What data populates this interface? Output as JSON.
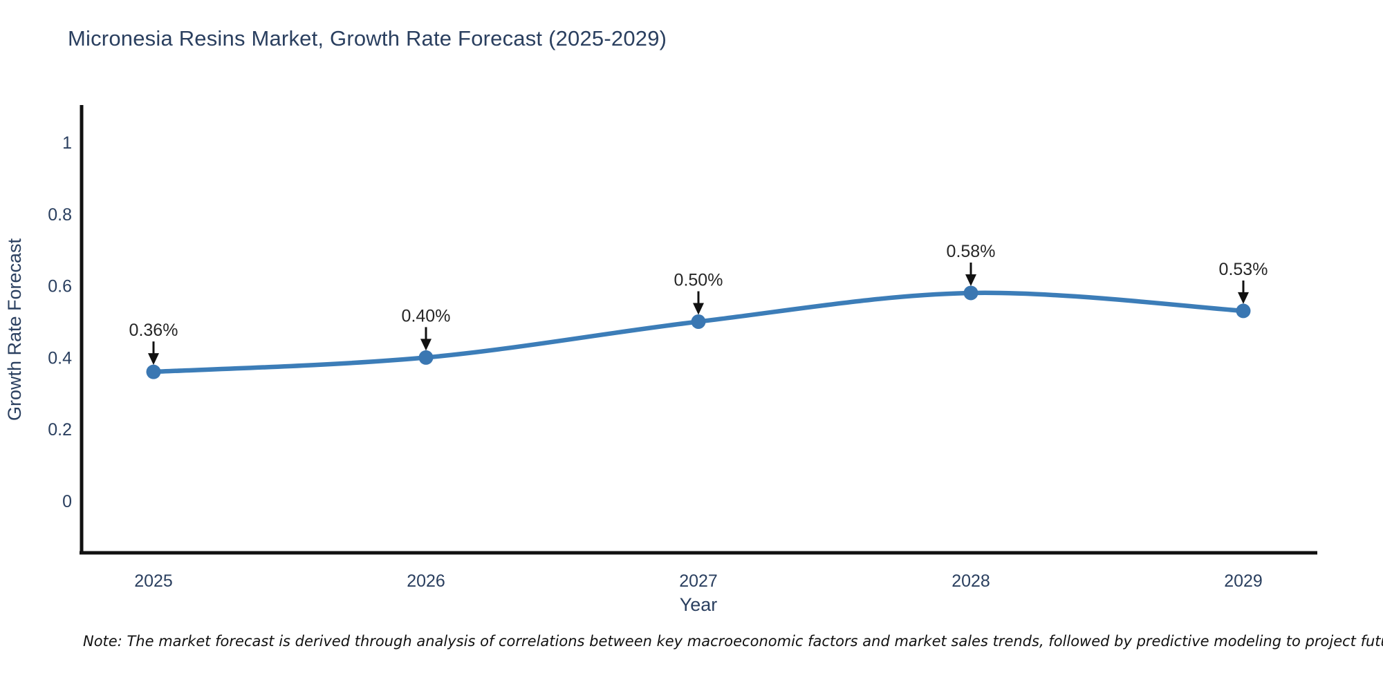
{
  "chart_data": {
    "type": "line",
    "title": "Micronesia Resins Market, Growth Rate Forecast (2025-2029)",
    "x": [
      2025,
      2026,
      2027,
      2028,
      2029
    ],
    "series": [
      {
        "name": "Growth Rate Forecast",
        "values": [
          0.36,
          0.4,
          0.5,
          0.58,
          0.53
        ]
      }
    ],
    "point_labels": [
      "0.36%",
      "0.40%",
      "0.50%",
      "0.58%",
      "0.53%"
    ],
    "xlabel": "Year",
    "ylabel": "Growth Rate Forecast",
    "ylim": [
      -0.14,
      1.1
    ],
    "yticks": [
      0,
      0.2,
      0.4,
      0.6,
      0.8,
      1
    ],
    "ytick_labels": [
      "0",
      "0.2",
      "0.4",
      "0.6",
      "0.8",
      "1"
    ],
    "grid": false,
    "legend": "none",
    "smooth": true,
    "colors": {
      "line": "#3c7db8",
      "marker": "#3a77b2",
      "axis": "#111111",
      "tick_text": "#2a3f5f",
      "annotation_text": "#262626",
      "arrow": "#111111",
      "title_text": "#2a3f5f"
    }
  },
  "note": {
    "text": "Note: The market forecast is derived through analysis of correlations between key macroeconomic factors and market sales trends, followed by predictive modeling to project future sales"
  }
}
